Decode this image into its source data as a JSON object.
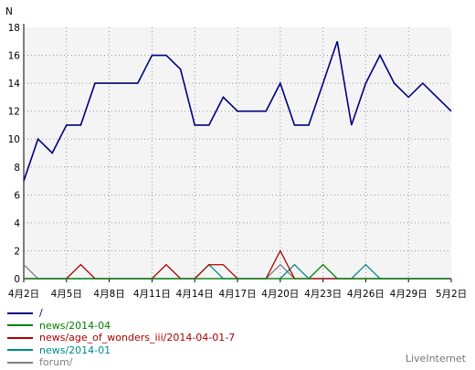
{
  "chart_data": {
    "type": "line",
    "ylabel": "N",
    "ylim": [
      0,
      18
    ],
    "yticks": [
      "0",
      "2",
      "4",
      "6",
      "8",
      "10",
      "12",
      "14",
      "16",
      "18"
    ],
    "x_count": 31,
    "x_tick_labels": [
      {
        "i": 0,
        "label": "4月2日"
      },
      {
        "i": 3,
        "label": "4月5日"
      },
      {
        "i": 6,
        "label": "4月8日"
      },
      {
        "i": 9,
        "label": "4月11日"
      },
      {
        "i": 12,
        "label": "4月14日"
      },
      {
        "i": 15,
        "label": "4月17日"
      },
      {
        "i": 18,
        "label": "4月20日"
      },
      {
        "i": 21,
        "label": "4月23日"
      },
      {
        "i": 24,
        "label": "4月26日"
      },
      {
        "i": 27,
        "label": "4月29日"
      },
      {
        "i": 30,
        "label": "5月2日"
      }
    ],
    "grid": true,
    "legend_position": "bottom-left",
    "series": [
      {
        "name": "/",
        "color": "#000080",
        "values": [
          7,
          10,
          9,
          11,
          11,
          14,
          14,
          14,
          14,
          16,
          16,
          15,
          11,
          11,
          13,
          12,
          12,
          12,
          14,
          11,
          11,
          14,
          17,
          11,
          14,
          16,
          14,
          13,
          14,
          13,
          12
        ]
      },
      {
        "name": "news/2014-04",
        "color": "#008000",
        "values": [
          0,
          0,
          0,
          0,
          0,
          0,
          0,
          0,
          0,
          0,
          0,
          0,
          0,
          0,
          0,
          0,
          0,
          0,
          0,
          0,
          0,
          1,
          0,
          0,
          0,
          0,
          0,
          0,
          0,
          0,
          0
        ]
      },
      {
        "name": "news/age_of_wonders_iii/2014-04-01-7",
        "color": "#aa0000",
        "values": [
          0,
          0,
          0,
          0,
          1,
          0,
          0,
          0,
          0,
          0,
          1,
          0,
          0,
          1,
          1,
          0,
          0,
          0,
          2,
          0,
          0,
          0,
          0,
          0,
          0,
          0,
          0,
          0,
          0,
          0,
          0
        ]
      },
      {
        "name": "news/2014-01",
        "color": "#008b8b",
        "values": [
          0,
          0,
          0,
          0,
          0,
          0,
          0,
          0,
          0,
          0,
          0,
          0,
          0,
          1,
          0,
          0,
          0,
          0,
          0,
          1,
          0,
          0,
          0,
          0,
          1,
          0,
          0,
          0,
          0,
          0,
          0
        ]
      },
      {
        "name": "forum/",
        "color": "#808080",
        "values": [
          1,
          0,
          0,
          0,
          0,
          0,
          0,
          0,
          0,
          0,
          0,
          0,
          0,
          0,
          0,
          0,
          0,
          0,
          1,
          0,
          0,
          0,
          0,
          0,
          0,
          0,
          0,
          0,
          0,
          0,
          0
        ]
      }
    ]
  },
  "brand": "LiveInternet"
}
